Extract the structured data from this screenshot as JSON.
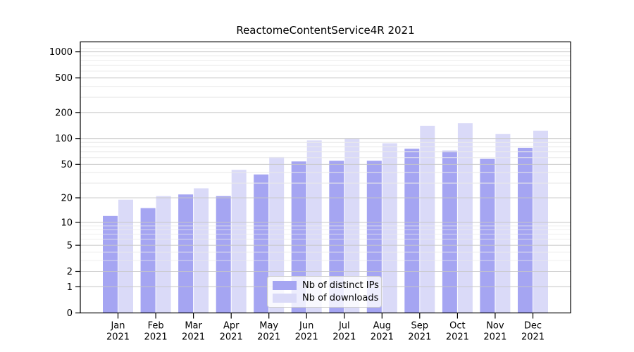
{
  "chart_data": {
    "type": "bar",
    "title": "ReactomeContentService4R 2021",
    "categories": [
      "Jan 2021",
      "Feb 2021",
      "Mar 2021",
      "Apr 2021",
      "May 2021",
      "Jun 2021",
      "Jul 2021",
      "Aug 2021",
      "Sep 2021",
      "Oct 2021",
      "Nov 2021",
      "Dec 2021"
    ],
    "series": [
      {
        "name": "Nb of distinct IPs",
        "color": "#a5a5f2",
        "values": [
          12,
          15,
          22,
          21,
          38,
          54,
          55,
          55,
          76,
          72,
          58,
          78
        ]
      },
      {
        "name": "Nb of downloads",
        "color": "#dadaf8",
        "values": [
          19,
          21,
          26,
          43,
          61,
          95,
          99,
          88,
          140,
          150,
          113,
          123
        ]
      }
    ],
    "xlabel": "",
    "ylabel": "",
    "yscale": "log1p",
    "y_ticks": [
      0,
      1,
      2,
      5,
      10,
      20,
      50,
      100,
      200,
      500,
      1000
    ],
    "ylim": [
      0,
      1300
    ],
    "grid": "horizontal, major and minor, drawn over bars",
    "legend_position": "inside bottom-center"
  },
  "colors": {
    "background": "#ffffff",
    "spine": "#000000",
    "major_grid": "#c7c7c7",
    "minor_grid": "#e9e9e9",
    "text": "#000000",
    "legend_border": "#cccccc"
  }
}
